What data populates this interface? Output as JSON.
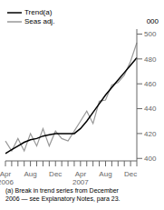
{
  "chart_data": {
    "type": "line",
    "ylabel": "000",
    "annotations": [
      "(a) Break in trend series from December\n2006 — see Explanatory Notes, para 23."
    ],
    "categories": [
      "Apr\n2006",
      null,
      null,
      null,
      "Aug",
      null,
      null,
      null,
      "Dec",
      null,
      null,
      null,
      "Apr\n2007",
      null,
      null,
      null,
      "Aug",
      null,
      null,
      null,
      "Dec",
      null
    ],
    "series": [
      {
        "name": "Trend(a)",
        "color": "#000000",
        "values": [
          404,
          407,
          410,
          413,
          415,
          416,
          418,
          419,
          420,
          420,
          420,
          420,
          424,
          430,
          437,
          444,
          451,
          457,
          463,
          469,
          475,
          481
        ]
      },
      {
        "name": "Seas adj.",
        "color": "#999999",
        "values": [
          414,
          406,
          416,
          406,
          420,
          410,
          424,
          410,
          422,
          416,
          414,
          422,
          430,
          438,
          428,
          446,
          447,
          459,
          461,
          467,
          478,
          493
        ]
      }
    ],
    "ylim": [
      398,
      504
    ],
    "yticks": [
      400,
      420,
      440,
      460,
      480,
      500
    ],
    "grid": false,
    "legend": "top"
  }
}
